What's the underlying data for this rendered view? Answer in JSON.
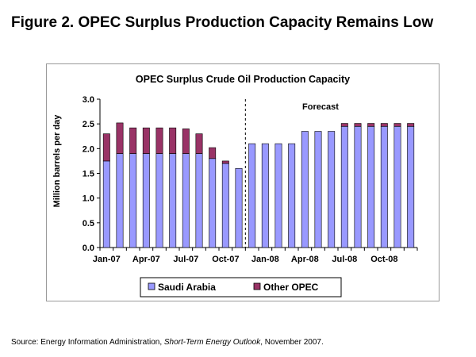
{
  "figure": {
    "title": "Figure 2.  OPEC Surplus Production Capacity Remains Low"
  },
  "source": {
    "prefix": "Source:  Energy Information Administration, ",
    "publication": "Short-Term Energy Outlook",
    "suffix": ", November 2007."
  },
  "colors": {
    "saudi": "#9999ff",
    "other": "#993366",
    "gridline": "#000000",
    "divider": "#000000"
  },
  "chart_data": {
    "type": "bar",
    "stacked": true,
    "title": "OPEC Surplus Crude Oil Production Capacity",
    "xlabel": "",
    "ylabel": "Million barrels per day",
    "ylim": [
      0,
      3.0
    ],
    "yticks": [
      "0.0",
      "0.5",
      "1.0",
      "1.5",
      "2.0",
      "2.5",
      "3.0"
    ],
    "ytick_values": [
      0,
      0.5,
      1.0,
      1.5,
      2.0,
      2.5,
      3.0
    ],
    "grid": false,
    "legend_position": "bottom",
    "categories": [
      "Jan-07",
      "Feb-07",
      "Mar-07",
      "Apr-07",
      "May-07",
      "Jun-07",
      "Jul-07",
      "Aug-07",
      "Sep-07",
      "Oct-07",
      "Nov-07",
      "Dec-07",
      "Jan-08",
      "Feb-08",
      "Mar-08",
      "Apr-08",
      "May-08",
      "Jun-08",
      "Jul-08",
      "Aug-08",
      "Sep-08",
      "Oct-08",
      "Nov-08",
      "Dec-08"
    ],
    "xtick_labels": [
      "Jan-07",
      "Apr-07",
      "Jul-07",
      "Oct-07",
      "Jan-08",
      "Apr-08",
      "Jul-08",
      "Oct-08"
    ],
    "xtick_indices": [
      0,
      3,
      6,
      9,
      12,
      15,
      18,
      21
    ],
    "series": [
      {
        "name": "Saudi Arabia",
        "values": [
          1.75,
          1.9,
          1.9,
          1.9,
          1.9,
          1.9,
          1.9,
          1.9,
          1.8,
          1.7,
          1.6,
          2.1,
          2.1,
          2.1,
          2.1,
          2.35,
          2.35,
          2.35,
          2.45,
          2.45,
          2.45,
          2.45,
          2.45,
          2.45
        ]
      },
      {
        "name": "Other OPEC",
        "values": [
          0.55,
          0.62,
          0.52,
          0.52,
          0.52,
          0.52,
          0.5,
          0.4,
          0.22,
          0.05,
          0,
          0,
          0,
          0,
          0,
          0,
          0,
          0,
          0.06,
          0.06,
          0.06,
          0.06,
          0.06,
          0.06
        ]
      }
    ],
    "forecast": {
      "label": "Forecast",
      "starts_after": "Nov-07"
    }
  }
}
